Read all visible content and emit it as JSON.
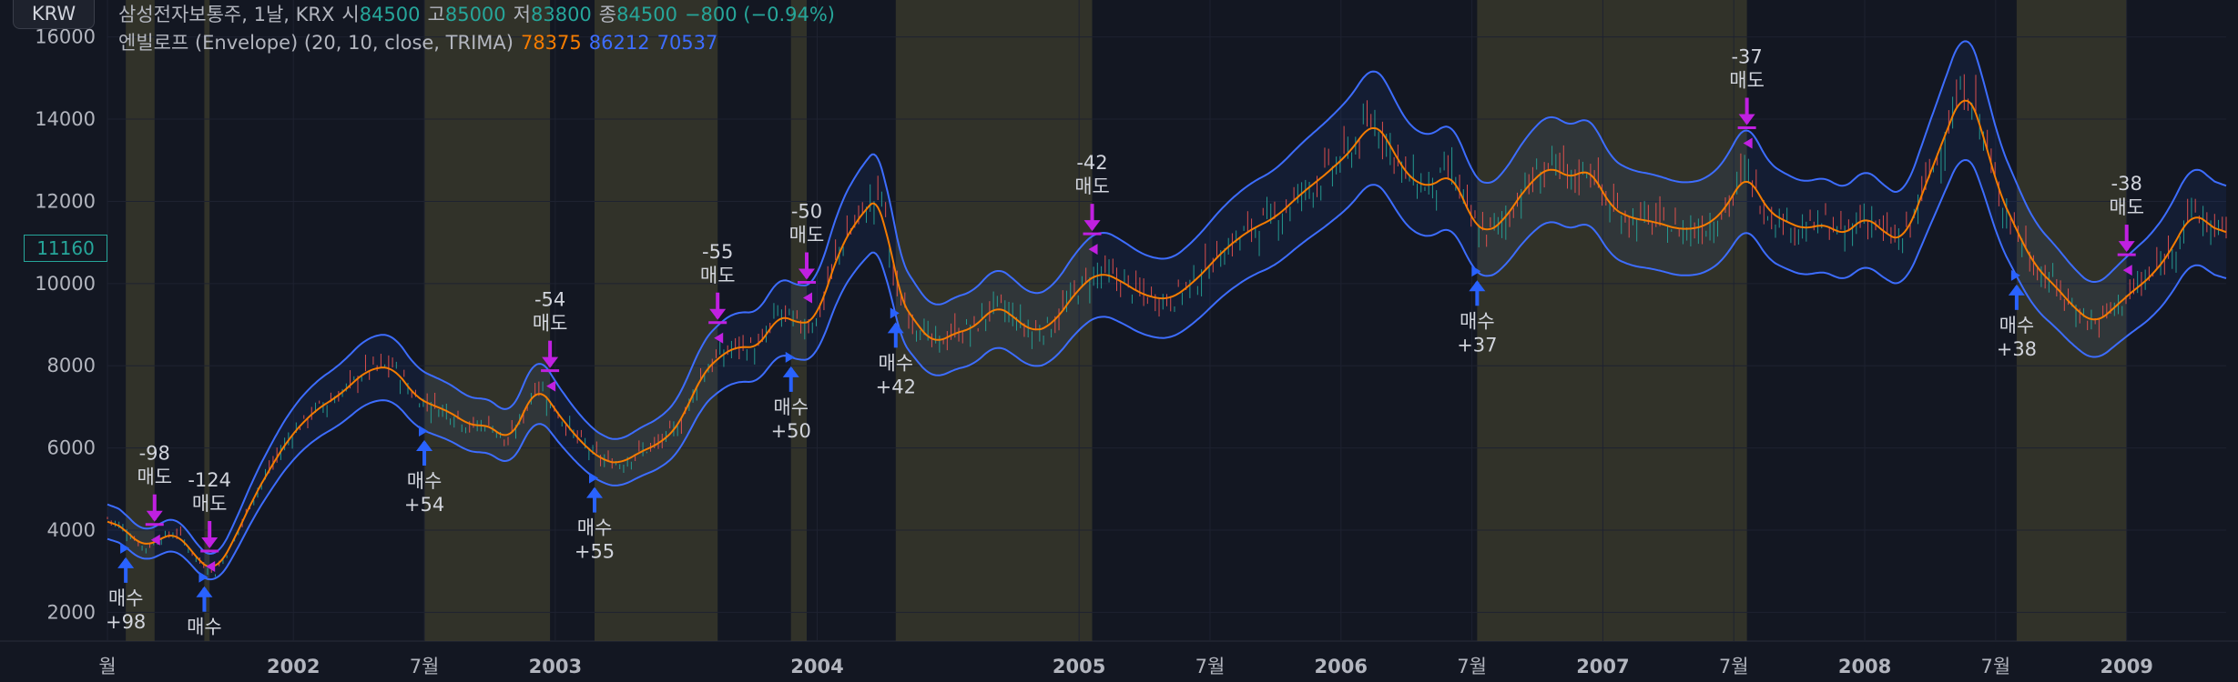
{
  "toolbar": {
    "currency": "KRW"
  },
  "legend": {
    "symbol": "삼성전자보통주, 1날, KRX",
    "open_label": "시",
    "open": "84500",
    "high_label": "고",
    "high": "85000",
    "low_label": "저",
    "low": "83800",
    "close_label": "종",
    "close": "84500",
    "change": "−800 (−0.94%)",
    "indicator": "엔빌로프 (Envelope) (20, 10, close, TRIMA)",
    "mid": "78375",
    "upper": "86212",
    "lower": "70537"
  },
  "price_tag": "11160",
  "colors": {
    "background": "#131722",
    "up": "#26a69a",
    "down": "#ef5350",
    "basis": "#f57c00",
    "band": "#3d6dff",
    "signal_buy": "#2962ff",
    "signal_sell": "#c020e0",
    "shade": "#3a3a2c"
  },
  "chart_data": {
    "type": "line",
    "ylim": [
      1300,
      16900
    ],
    "y_ticks": [
      2000,
      4000,
      6000,
      8000,
      10000,
      12000,
      14000,
      16000
    ],
    "x_ticks": [
      {
        "t": 2001.29,
        "label": "월"
      },
      {
        "t": 2002.0,
        "label": "2002"
      },
      {
        "t": 2002.5,
        "label": "7월"
      },
      {
        "t": 2003.0,
        "label": "2003"
      },
      {
        "t": 2004.0,
        "label": "2004"
      },
      {
        "t": 2005.0,
        "label": "2005"
      },
      {
        "t": 2005.5,
        "label": "7월"
      },
      {
        "t": 2006.0,
        "label": "2006"
      },
      {
        "t": 2006.5,
        "label": "7월"
      },
      {
        "t": 2007.0,
        "label": "2007"
      },
      {
        "t": 2007.5,
        "label": "7월"
      },
      {
        "t": 2008.0,
        "label": "2008"
      },
      {
        "t": 2008.5,
        "label": "7월"
      },
      {
        "t": 2009.0,
        "label": "2009"
      }
    ],
    "price_series": [
      [
        2001.29,
        4300
      ],
      [
        2001.36,
        4000
      ],
      [
        2001.43,
        3550
      ],
      [
        2001.49,
        3800
      ],
      [
        2001.56,
        3950
      ],
      [
        2001.63,
        3300
      ],
      [
        2001.7,
        2950
      ],
      [
        2001.77,
        3700
      ],
      [
        2001.84,
        4700
      ],
      [
        2001.92,
        5600
      ],
      [
        2001.99,
        6300
      ],
      [
        2002.08,
        6900
      ],
      [
        2002.18,
        7300
      ],
      [
        2002.28,
        7900
      ],
      [
        2002.38,
        8000
      ],
      [
        2002.47,
        7200
      ],
      [
        2002.55,
        7000
      ],
      [
        2002.62,
        6800
      ],
      [
        2002.68,
        6500
      ],
      [
        2002.75,
        6600
      ],
      [
        2002.82,
        6100
      ],
      [
        2002.87,
        6700
      ],
      [
        2002.93,
        7600
      ],
      [
        2002.98,
        7100
      ],
      [
        2003.05,
        6500
      ],
      [
        2003.12,
        6000
      ],
      [
        2003.18,
        5700
      ],
      [
        2003.25,
        5600
      ],
      [
        2003.32,
        5900
      ],
      [
        2003.4,
        6100
      ],
      [
        2003.48,
        6600
      ],
      [
        2003.55,
        7700
      ],
      [
        2003.62,
        8200
      ],
      [
        2003.7,
        8500
      ],
      [
        2003.78,
        8400
      ],
      [
        2003.85,
        9300
      ],
      [
        2003.93,
        9000
      ],
      [
        2004.0,
        9100
      ],
      [
        2004.08,
        10800
      ],
      [
        2004.18,
        11800
      ],
      [
        2004.25,
        12200
      ],
      [
        2004.3,
        9800
      ],
      [
        2004.38,
        9000
      ],
      [
        2004.45,
        8500
      ],
      [
        2004.52,
        8800
      ],
      [
        2004.6,
        8900
      ],
      [
        2004.68,
        9500
      ],
      [
        2004.75,
        9200
      ],
      [
        2004.82,
        8800
      ],
      [
        2004.9,
        9000
      ],
      [
        2005.0,
        9900
      ],
      [
        2005.08,
        10300
      ],
      [
        2005.15,
        10100
      ],
      [
        2005.25,
        9700
      ],
      [
        2005.35,
        9600
      ],
      [
        2005.45,
        10100
      ],
      [
        2005.55,
        10800
      ],
      [
        2005.65,
        11300
      ],
      [
        2005.75,
        11600
      ],
      [
        2005.85,
        12200
      ],
      [
        2005.95,
        12700
      ],
      [
        2006.05,
        13300
      ],
      [
        2006.12,
        14000
      ],
      [
        2006.18,
        13500
      ],
      [
        2006.25,
        12600
      ],
      [
        2006.35,
        12300
      ],
      [
        2006.42,
        12800
      ],
      [
        2006.5,
        11500
      ],
      [
        2006.55,
        11200
      ],
      [
        2006.62,
        11500
      ],
      [
        2006.7,
        12300
      ],
      [
        2006.8,
        12900
      ],
      [
        2006.88,
        12500
      ],
      [
        2006.95,
        12900
      ],
      [
        2007.02,
        11900
      ],
      [
        2007.1,
        11600
      ],
      [
        2007.2,
        11500
      ],
      [
        2007.3,
        11300
      ],
      [
        2007.4,
        11400
      ],
      [
        2007.48,
        11900
      ],
      [
        2007.55,
        12800
      ],
      [
        2007.62,
        11800
      ],
      [
        2007.7,
        11500
      ],
      [
        2007.78,
        11300
      ],
      [
        2007.85,
        11500
      ],
      [
        2007.92,
        11100
      ],
      [
        2008.0,
        11700
      ],
      [
        2008.08,
        11200
      ],
      [
        2008.15,
        11000
      ],
      [
        2008.22,
        12200
      ],
      [
        2008.3,
        13500
      ],
      [
        2008.38,
        14800
      ],
      [
        2008.44,
        14000
      ],
      [
        2008.5,
        12400
      ],
      [
        2008.58,
        11300
      ],
      [
        2008.65,
        10400
      ],
      [
        2008.72,
        10000
      ],
      [
        2008.8,
        9400
      ],
      [
        2008.88,
        9000
      ],
      [
        2008.95,
        9400
      ],
      [
        2009.02,
        9800
      ],
      [
        2009.1,
        10200
      ],
      [
        2009.18,
        10900
      ],
      [
        2009.25,
        11800
      ],
      [
        2009.3,
        11500
      ],
      [
        2009.38,
        11160
      ]
    ],
    "signals": [
      {
        "t": 2001.36,
        "type": "buy",
        "label": "매수",
        "qty": "+98"
      },
      {
        "t": 2001.47,
        "type": "sell",
        "label": "매도",
        "qty": "-98"
      },
      {
        "t": 2001.66,
        "type": "buy",
        "label": "매수",
        "qty": ""
      },
      {
        "t": 2001.68,
        "type": "sell",
        "label": "매도",
        "qty": "-124"
      },
      {
        "t": 2002.5,
        "type": "buy",
        "label": "매수",
        "qty": "+54"
      },
      {
        "t": 2002.98,
        "type": "sell",
        "label": "매도",
        "qty": "-54"
      },
      {
        "t": 2003.15,
        "type": "buy",
        "label": "매수",
        "qty": "+55"
      },
      {
        "t": 2003.62,
        "type": "sell",
        "label": "매도",
        "qty": "-55"
      },
      {
        "t": 2003.9,
        "type": "buy",
        "label": "매수",
        "qty": "+50"
      },
      {
        "t": 2003.96,
        "type": "sell",
        "label": "매도",
        "qty": "-50"
      },
      {
        "t": 2004.3,
        "type": "buy",
        "label": "매수",
        "qty": "+42"
      },
      {
        "t": 2005.05,
        "type": "sell",
        "label": "매도",
        "qty": "-42"
      },
      {
        "t": 2006.52,
        "type": "buy",
        "label": "매수",
        "qty": "+37"
      },
      {
        "t": 2007.55,
        "type": "sell",
        "label": "매도",
        "qty": "-37"
      },
      {
        "t": 2008.58,
        "type": "buy",
        "label": "매수",
        "qty": "+38"
      },
      {
        "t": 2009.0,
        "type": "sell",
        "label": "매도",
        "qty": "-38"
      }
    ],
    "shaded_periods": [
      [
        2001.36,
        2001.47
      ],
      [
        2001.66,
        2001.68
      ],
      [
        2002.5,
        2002.98
      ],
      [
        2003.15,
        2003.62
      ],
      [
        2003.9,
        2003.96
      ],
      [
        2004.3,
        2005.05
      ],
      [
        2006.52,
        2007.55
      ],
      [
        2008.58,
        2009.0
      ]
    ]
  }
}
